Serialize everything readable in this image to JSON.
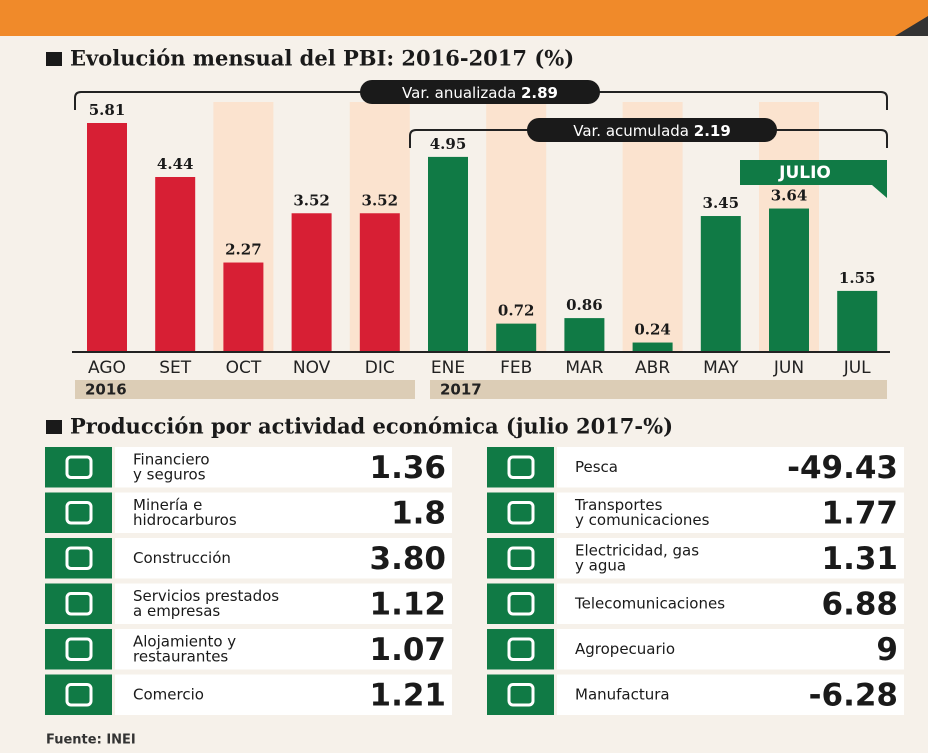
{
  "chart_data": {
    "type": "bar",
    "title": "Evolución mensual del PBI: 2016-2017 (%)",
    "categories": [
      "AGO",
      "SET",
      "OCT",
      "NOV",
      "DIC",
      "ENE",
      "FEB",
      "MAR",
      "ABR",
      "MAY",
      "JUN",
      "JUL"
    ],
    "values": [
      5.81,
      4.44,
      2.27,
      3.52,
      3.52,
      4.95,
      0.72,
      0.86,
      0.24,
      3.45,
      3.64,
      1.55
    ],
    "colors": [
      "#d71f34",
      "#d71f34",
      "#d71f34",
      "#d71f34",
      "#d71f34",
      "#107a45",
      "#107a45",
      "#107a45",
      "#107a45",
      "#107a45",
      "#107a45",
      "#107a45"
    ],
    "years": [
      "2016",
      "2017"
    ],
    "annotations": [
      {
        "text": "Var. anualizada",
        "value": 2.89
      },
      {
        "text": "Var. acumulada",
        "value": 2.19
      },
      {
        "text": "JULIO"
      }
    ]
  },
  "production": {
    "title": "Producción por actividad económica (julio 2017-%)",
    "left": [
      {
        "label": [
          "Financiero",
          "y seguros"
        ],
        "value": "1.36"
      },
      {
        "label": [
          "Minería e",
          "hidrocarburos"
        ],
        "value": "1.8"
      },
      {
        "label": [
          "Construcción"
        ],
        "value": "3.80"
      },
      {
        "label": [
          "Servicios prestados",
          "a empresas"
        ],
        "value": "1.12"
      },
      {
        "label": [
          "Alojamiento y",
          "restaurantes"
        ],
        "value": "1.07"
      },
      {
        "label": [
          "Comercio"
        ],
        "value": "1.21"
      }
    ],
    "right": [
      {
        "label": [
          "Pesca"
        ],
        "value": "-49.43"
      },
      {
        "label": [
          "Transportes",
          "y comunicaciones"
        ],
        "value": "1.77"
      },
      {
        "label": [
          "Electricidad, gas",
          "y agua"
        ],
        "value": "1.31"
      },
      {
        "label": [
          "Telecomunicaciones"
        ],
        "value": "6.88"
      },
      {
        "label": [
          "Agropecuario"
        ],
        "value": "9"
      },
      {
        "label": [
          "Manufactura"
        ],
        "value": "-6.28"
      }
    ]
  },
  "source": "Fuente: INEI"
}
